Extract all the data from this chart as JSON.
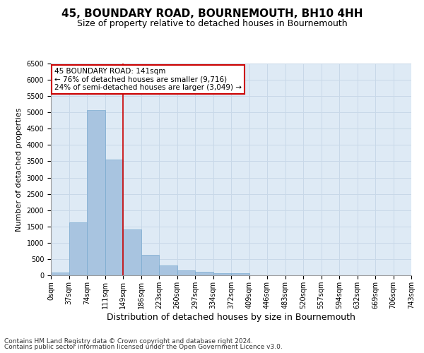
{
  "title1": "45, BOUNDARY ROAD, BOURNEMOUTH, BH10 4HH",
  "title2": "Size of property relative to detached houses in Bournemouth",
  "xlabel": "Distribution of detached houses by size in Bournemouth",
  "ylabel": "Number of detached properties",
  "bar_values": [
    80,
    1620,
    5060,
    3560,
    1410,
    620,
    310,
    155,
    100,
    60,
    60,
    0,
    0,
    0,
    0,
    0,
    0,
    0,
    0,
    0
  ],
  "bar_labels": [
    "0sqm",
    "37sqm",
    "74sqm",
    "111sqm",
    "149sqm",
    "186sqm",
    "223sqm",
    "260sqm",
    "297sqm",
    "334sqm",
    "372sqm",
    "409sqm",
    "446sqm",
    "483sqm",
    "520sqm",
    "557sqm",
    "594sqm",
    "632sqm",
    "669sqm",
    "706sqm",
    "743sqm"
  ],
  "bar_color": "#a8c4e0",
  "bar_edge_color": "#7aaacf",
  "grid_color": "#c8d8e8",
  "background_color": "#deeaf5",
  "vline_x": 4,
  "vline_color": "#cc0000",
  "annotation_text": "45 BOUNDARY ROAD: 141sqm\n← 76% of detached houses are smaller (9,716)\n24% of semi-detached houses are larger (3,049) →",
  "annotation_box_color": "#ffffff",
  "annotation_box_edge": "#cc0000",
  "ylim": [
    0,
    6500
  ],
  "yticks": [
    0,
    500,
    1000,
    1500,
    2000,
    2500,
    3000,
    3500,
    4000,
    4500,
    5000,
    5500,
    6000,
    6500
  ],
  "footer1": "Contains HM Land Registry data © Crown copyright and database right 2024.",
  "footer2": "Contains public sector information licensed under the Open Government Licence v3.0.",
  "title1_fontsize": 11,
  "title2_fontsize": 9,
  "xlabel_fontsize": 9,
  "ylabel_fontsize": 8,
  "tick_fontsize": 7,
  "footer_fontsize": 6.5,
  "annot_fontsize": 7.5
}
